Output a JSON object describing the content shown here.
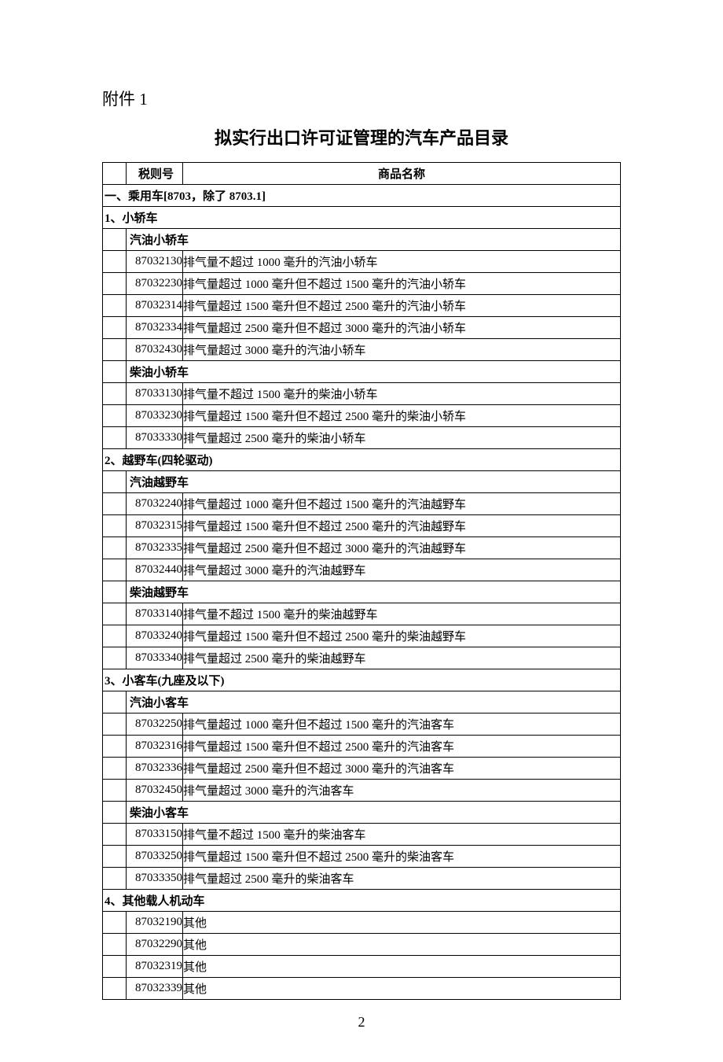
{
  "attachment_label": "附件 1",
  "title": "拟实行出口许可证管理的汽车产品目录",
  "header": {
    "code": "税则号",
    "name": "商品名称"
  },
  "page_number": "2",
  "sections": [
    {
      "title": "一、乘用车[8703，除了 8703.1]",
      "groups": [
        {
          "title": "1、小轿车",
          "subgroups": [
            {
              "title": "汽油小轿车",
              "rows": [
                {
                  "code": "87032130",
                  "name": "排气量不超过 1000 毫升的汽油小轿车"
                },
                {
                  "code": "87032230",
                  "name": "排气量超过 1000 毫升但不超过 1500 毫升的汽油小轿车"
                },
                {
                  "code": "87032314",
                  "name": "排气量超过 1500 毫升但不超过 2500 毫升的汽油小轿车"
                },
                {
                  "code": "87032334",
                  "name": "排气量超过 2500 毫升但不超过 3000 毫升的汽油小轿车"
                },
                {
                  "code": "87032430",
                  "name": "排气量超过 3000 毫升的汽油小轿车"
                }
              ]
            },
            {
              "title": "柴油小轿车",
              "rows": [
                {
                  "code": "87033130",
                  "name": "排气量不超过 1500 毫升的柴油小轿车"
                },
                {
                  "code": "87033230",
                  "name": "排气量超过 1500 毫升但不超过 2500 毫升的柴油小轿车"
                },
                {
                  "code": "87033330",
                  "name": "排气量超过 2500 毫升的柴油小轿车"
                }
              ]
            }
          ]
        },
        {
          "title": "2、越野车(四轮驱动)",
          "subgroups": [
            {
              "title": "汽油越野车",
              "rows": [
                {
                  "code": "87032240",
                  "name": "排气量超过 1000 毫升但不超过 1500 毫升的汽油越野车"
                },
                {
                  "code": "87032315",
                  "name": "排气量超过 1500 毫升但不超过 2500 毫升的汽油越野车"
                },
                {
                  "code": "87032335",
                  "name": "排气量超过 2500 毫升但不超过 3000 毫升的汽油越野车"
                },
                {
                  "code": "87032440",
                  "name": "排气量超过 3000 毫升的汽油越野车"
                }
              ]
            },
            {
              "title": "柴油越野车",
              "rows": [
                {
                  "code": "87033140",
                  "name": "排气量不超过 1500 毫升的柴油越野车"
                },
                {
                  "code": "87033240",
                  "name": "排气量超过 1500 毫升但不超过 2500 毫升的柴油越野车"
                },
                {
                  "code": "87033340",
                  "name": "排气量超过 2500 毫升的柴油越野车"
                }
              ]
            }
          ]
        },
        {
          "title": "3、小客车(九座及以下)",
          "subgroups": [
            {
              "title": "汽油小客车",
              "rows": [
                {
                  "code": "87032250",
                  "name": "排气量超过 1000 毫升但不超过 1500 毫升的汽油客车"
                },
                {
                  "code": "87032316",
                  "name": "排气量超过 1500 毫升但不超过 2500 毫升的汽油客车"
                },
                {
                  "code": "87032336",
                  "name": "排气量超过 2500 毫升但不超过 3000 毫升的汽油客车"
                },
                {
                  "code": "87032450",
                  "name": "排气量超过 3000 毫升的汽油客车"
                }
              ]
            },
            {
              "title": "柴油小客车",
              "rows": [
                {
                  "code": "87033150",
                  "name": "排气量不超过 1500 毫升的柴油客车"
                },
                {
                  "code": "87033250",
                  "name": "排气量超过 1500 毫升但不超过 2500 毫升的柴油客车"
                },
                {
                  "code": "87033350",
                  "name": "排气量超过 2500 毫升的柴油客车"
                }
              ]
            }
          ]
        },
        {
          "title": "4、其他载人机动车",
          "subgroups": [
            {
              "title": null,
              "rows": [
                {
                  "code": "87032190",
                  "name": "其他"
                },
                {
                  "code": "87032290",
                  "name": "其他"
                },
                {
                  "code": "87032319",
                  "name": "其他"
                },
                {
                  "code": "87032339",
                  "name": "其他"
                }
              ]
            }
          ]
        }
      ]
    }
  ]
}
